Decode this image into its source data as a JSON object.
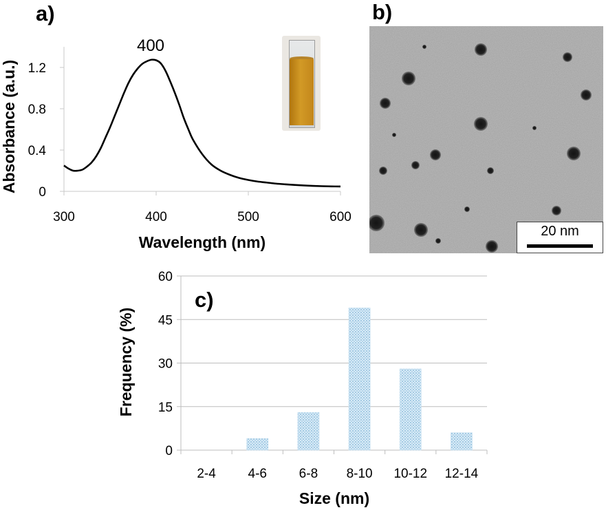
{
  "panels": {
    "a": "a)",
    "b": "b)",
    "c": "c)"
  },
  "chart_data": [
    {
      "type": "line",
      "title": "",
      "xlabel": "Wavelength (nm)",
      "ylabel": "Absorbance (a.u.)",
      "xlim": [
        300,
        600
      ],
      "ylim": [
        0,
        1.4
      ],
      "xticks": [
        300,
        400,
        500,
        600
      ],
      "yticks": [
        0,
        0.4,
        0.8,
        1.2
      ],
      "xtick_labels": [
        "300",
        "400",
        "500",
        "600"
      ],
      "ytick_labels": [
        "0",
        "0.4",
        "0.8",
        "1.2"
      ],
      "peak_label": "400",
      "series": [
        {
          "name": "absorbance",
          "color": "#000000",
          "x": [
            300,
            305,
            310,
            315,
            320,
            325,
            330,
            335,
            340,
            345,
            350,
            355,
            360,
            365,
            370,
            375,
            380,
            385,
            390,
            395,
            400,
            405,
            410,
            415,
            420,
            425,
            430,
            435,
            440,
            450,
            460,
            470,
            480,
            490,
            500,
            510,
            520,
            530,
            540,
            550,
            560,
            570,
            580,
            590,
            600
          ],
          "y": [
            0.25,
            0.22,
            0.2,
            0.2,
            0.21,
            0.24,
            0.28,
            0.34,
            0.42,
            0.52,
            0.62,
            0.73,
            0.84,
            0.95,
            1.05,
            1.13,
            1.19,
            1.235,
            1.26,
            1.275,
            1.27,
            1.24,
            1.17,
            1.07,
            0.96,
            0.84,
            0.71,
            0.6,
            0.5,
            0.36,
            0.26,
            0.2,
            0.16,
            0.13,
            0.11,
            0.095,
            0.085,
            0.075,
            0.068,
            0.062,
            0.057,
            0.053,
            0.05,
            0.048,
            0.047
          ]
        }
      ]
    },
    {
      "type": "bar",
      "title": "",
      "xlabel": "Size (nm)",
      "ylabel": "Frequency (%)",
      "categories": [
        "2-4",
        "4-6",
        "6-8",
        "8-10",
        "10-12",
        "12-14"
      ],
      "values": [
        0,
        4,
        13,
        49,
        28,
        6
      ],
      "ylim": [
        0,
        60
      ],
      "yticks": [
        0,
        15,
        30,
        45,
        60
      ],
      "ytick_labels": [
        "0",
        "15",
        "30",
        "45",
        "60"
      ],
      "grid": true,
      "bar_color": "#c5dff0"
    }
  ],
  "tem": {
    "scale_bar_label": "20 nm",
    "background_color": "#9a9a9a",
    "particle_color": "#1c1c1c"
  }
}
